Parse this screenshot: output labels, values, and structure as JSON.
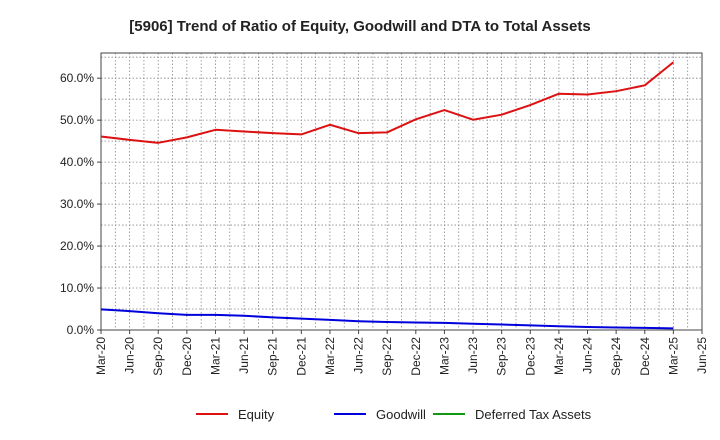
{
  "chart_data": {
    "type": "line",
    "title": "[5906]  Trend of Ratio of Equity, Goodwill and DTA to Total Assets",
    "xlabel": "",
    "ylabel": "",
    "ylim": [
      0,
      66
    ],
    "yticks": [
      0,
      10,
      20,
      30,
      40,
      50,
      60
    ],
    "ytick_labels": [
      "0.0%",
      "10.0%",
      "20.0%",
      "30.0%",
      "40.0%",
      "50.0%",
      "60.0%"
    ],
    "categories": [
      "Mar-20",
      "Jun-20",
      "Sep-20",
      "Dec-20",
      "Mar-21",
      "Jun-21",
      "Sep-21",
      "Dec-21",
      "Mar-22",
      "Jun-22",
      "Sep-22",
      "Dec-22",
      "Mar-23",
      "Jun-23",
      "Sep-23",
      "Dec-23",
      "Mar-24",
      "Jun-24",
      "Sep-24",
      "Dec-24",
      "Mar-25",
      "Jun-25"
    ],
    "grid": true,
    "legend_position": "bottom",
    "series": [
      {
        "name": "Equity",
        "color": "#dd1111",
        "values": [
          46.1,
          45.3,
          44.6,
          45.9,
          47.7,
          47.3,
          46.9,
          46.6,
          48.9,
          46.9,
          47.1,
          50.2,
          52.4,
          50.1,
          51.3,
          53.6,
          56.3,
          56.1,
          56.9,
          58.3,
          63.8,
          null
        ]
      },
      {
        "name": "Goodwill",
        "color": "#0000dd",
        "values": [
          4.9,
          4.5,
          4.0,
          3.6,
          3.6,
          3.4,
          3.0,
          2.7,
          2.4,
          2.1,
          1.9,
          1.8,
          1.7,
          1.5,
          1.3,
          1.1,
          0.9,
          0.7,
          0.6,
          0.5,
          0.4,
          null
        ]
      },
      {
        "name": "Deferred Tax Assets",
        "color": "#119911",
        "values": [
          null,
          null,
          null,
          null,
          null,
          null,
          null,
          null,
          null,
          null,
          null,
          null,
          null,
          null,
          null,
          null,
          null,
          null,
          null,
          null,
          null,
          null
        ]
      }
    ]
  }
}
